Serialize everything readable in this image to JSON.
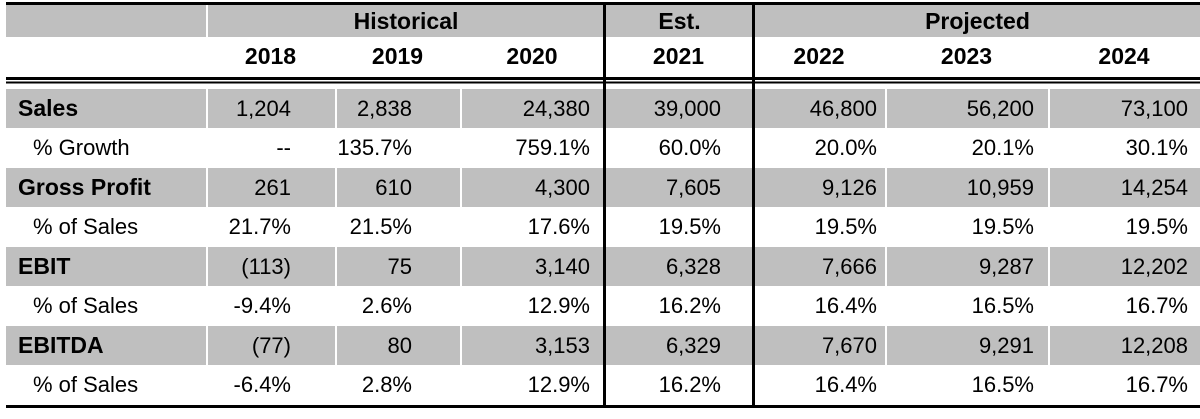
{
  "colors": {
    "shaded_row": "#bfbfbf",
    "border": "#000000",
    "text": "#000000",
    "background": "#ffffff"
  },
  "header": {
    "sections": {
      "historical": "Historical",
      "estimated": "Est.",
      "projected": "Projected"
    },
    "years": [
      "2018",
      "2019",
      "2020",
      "2021",
      "2022",
      "2023",
      "2024"
    ]
  },
  "rows": [
    {
      "label": "Sales",
      "values": [
        "1,204",
        "2,838",
        "24,380",
        "39,000",
        "46,800",
        "56,200",
        "73,100"
      ]
    },
    {
      "label": "% Growth",
      "values": [
        "--",
        "135.7%",
        "759.1%",
        "60.0%",
        "20.0%",
        "20.1%",
        "30.1%"
      ]
    },
    {
      "label": "Gross Profit",
      "values": [
        "261",
        "610",
        "4,300",
        "7,605",
        "9,126",
        "10,959",
        "14,254"
      ]
    },
    {
      "label": "% of Sales",
      "values": [
        "21.7%",
        "21.5%",
        "17.6%",
        "19.5%",
        "19.5%",
        "19.5%",
        "19.5%"
      ]
    },
    {
      "label": "EBIT",
      "values": [
        "(113)",
        "75",
        "3,140",
        "6,328",
        "7,666",
        "9,287",
        "12,202"
      ]
    },
    {
      "label": "% of Sales",
      "values": [
        "-9.4%",
        "2.6%",
        "12.9%",
        "16.2%",
        "16.4%",
        "16.5%",
        "16.7%"
      ]
    },
    {
      "label": "EBITDA",
      "values": [
        "(77)",
        "80",
        "3,153",
        "6,329",
        "7,670",
        "9,291",
        "12,208"
      ]
    },
    {
      "label": "% of Sales",
      "values": [
        "-6.4%",
        "2.8%",
        "12.9%",
        "16.2%",
        "16.4%",
        "16.5%",
        "16.7%"
      ]
    }
  ]
}
